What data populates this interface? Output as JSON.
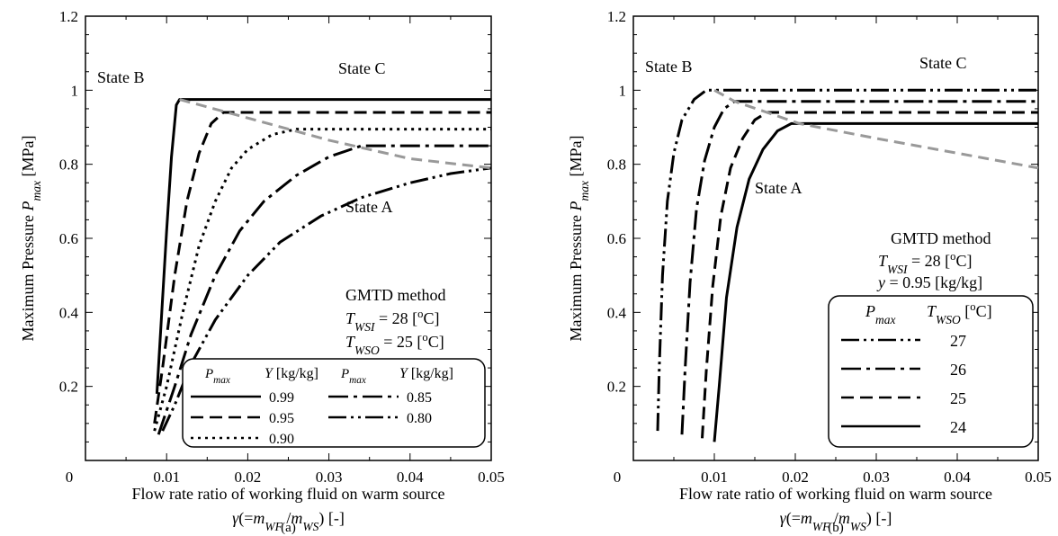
{
  "figure": {
    "panel_labels": [
      "(a)",
      "(b)"
    ]
  },
  "chart_data": [
    {
      "type": "line",
      "panel": "(a)",
      "xlabel": "Flow rate ratio of working fluid on warm source",
      "xlabel2": "γ(=m_WF/m_WS) [-]",
      "ylabel": "Maximum Pressure P_max [MPa]",
      "xlim": [
        0,
        0.05
      ],
      "ylim": [
        0,
        1.2
      ],
      "xticks": [
        "0",
        "0.01",
        "0.02",
        "0.03",
        "0.04",
        "0.05"
      ],
      "yticks": [
        "0.2",
        "0.4",
        "0.6",
        "0.8",
        "1",
        "1.2"
      ],
      "annotations": [
        "State B",
        "State C",
        "State A"
      ],
      "method_text": [
        "GMTD method",
        "T_WSI = 28 [°C]",
        "T_WSO = 25 [°C]"
      ],
      "legend_headers": [
        "P_max",
        "Y [kg/kg]",
        "P_max",
        "Y [kg/kg]"
      ],
      "series": [
        {
          "name": "0.99",
          "dash": "solid",
          "x": [
            0.0088,
            0.0094,
            0.01,
            0.0106,
            0.0112,
            0.0116,
            0.05
          ],
          "y": [
            0.18,
            0.4,
            0.62,
            0.82,
            0.96,
            0.975,
            0.975
          ]
        },
        {
          "name": "0.95",
          "dash": "dash",
          "x": [
            0.0085,
            0.0095,
            0.011,
            0.0125,
            0.014,
            0.0155,
            0.017,
            0.05
          ],
          "y": [
            0.1,
            0.25,
            0.5,
            0.7,
            0.83,
            0.91,
            0.94,
            0.94
          ]
        },
        {
          "name": "0.90",
          "dash": "dot",
          "x": [
            0.0085,
            0.01,
            0.012,
            0.014,
            0.016,
            0.018,
            0.02,
            0.023,
            0.026,
            0.05
          ],
          "y": [
            0.08,
            0.2,
            0.4,
            0.58,
            0.7,
            0.79,
            0.84,
            0.88,
            0.895,
            0.895
          ]
        },
        {
          "name": "0.85",
          "dash": "dashdot",
          "x": [
            0.009,
            0.011,
            0.013,
            0.016,
            0.019,
            0.022,
            0.026,
            0.03,
            0.034,
            0.05
          ],
          "y": [
            0.07,
            0.2,
            0.34,
            0.5,
            0.62,
            0.7,
            0.77,
            0.82,
            0.85,
            0.85
          ]
        },
        {
          "name": "0.80",
          "dash": "dashdotdot",
          "x": [
            0.0095,
            0.011,
            0.013,
            0.016,
            0.02,
            0.024,
            0.029,
            0.034,
            0.04,
            0.045,
            0.05
          ],
          "y": [
            0.08,
            0.15,
            0.26,
            0.38,
            0.5,
            0.59,
            0.66,
            0.71,
            0.75,
            0.775,
            0.79
          ]
        },
        {
          "name": "",
          "dash": "gray-dash",
          "x": [
            0.0116,
            0.02,
            0.03,
            0.04,
            0.05
          ],
          "y": [
            0.975,
            0.925,
            0.865,
            0.815,
            0.79
          ]
        }
      ]
    },
    {
      "type": "line",
      "panel": "(b)",
      "xlabel": "Flow rate ratio of working fluid on warm source",
      "xlabel2": "γ(=m_WF/m_WS) [-]",
      "ylabel": "Maximum Pressure P_max [MPa]",
      "xlim": [
        0,
        0.05
      ],
      "ylim": [
        0,
        1.2
      ],
      "xticks": [
        "0",
        "0.01",
        "0.02",
        "0.03",
        "0.04",
        "0.05"
      ],
      "yticks": [
        "0.2",
        "0.4",
        "0.6",
        "0.8",
        "1",
        "1.2"
      ],
      "annotations": [
        "State B",
        "State C",
        "State A"
      ],
      "method_text": [
        "GMTD method",
        "T_WSI = 28 [°C]",
        "y = 0.95 [kg/kg]"
      ],
      "legend_headers": [
        "P_max",
        "T_WSO [°C]"
      ],
      "series": [
        {
          "name": "27",
          "dash": "dashdotdot",
          "x": [
            0.003,
            0.0032,
            0.0036,
            0.0042,
            0.005,
            0.006,
            0.0075,
            0.009,
            0.05
          ],
          "y": [
            0.08,
            0.25,
            0.5,
            0.7,
            0.83,
            0.92,
            0.975,
            1.0,
            1.0
          ]
        },
        {
          "name": "26",
          "dash": "dashdot",
          "x": [
            0.006,
            0.0064,
            0.007,
            0.0078,
            0.0088,
            0.01,
            0.0112,
            0.0125,
            0.05
          ],
          "y": [
            0.07,
            0.25,
            0.48,
            0.68,
            0.81,
            0.9,
            0.95,
            0.97,
            0.97
          ]
        },
        {
          "name": "25",
          "dash": "dash",
          "x": [
            0.0085,
            0.009,
            0.0098,
            0.0108,
            0.012,
            0.0135,
            0.015,
            0.0165,
            0.05
          ],
          "y": [
            0.06,
            0.24,
            0.47,
            0.66,
            0.79,
            0.87,
            0.92,
            0.94,
            0.94
          ]
        },
        {
          "name": "24",
          "dash": "solid",
          "x": [
            0.01,
            0.0106,
            0.0115,
            0.0128,
            0.0143,
            0.016,
            0.0178,
            0.0195,
            0.0205,
            0.05
          ],
          "y": [
            0.05,
            0.2,
            0.44,
            0.63,
            0.76,
            0.84,
            0.89,
            0.91,
            0.91,
            0.91
          ]
        },
        {
          "name": "",
          "dash": "gray-dash",
          "x": [
            0.01,
            0.0125,
            0.0165,
            0.0205,
            0.03,
            0.04,
            0.05
          ],
          "y": [
            1.0,
            0.97,
            0.94,
            0.91,
            0.87,
            0.83,
            0.79
          ]
        }
      ]
    }
  ]
}
